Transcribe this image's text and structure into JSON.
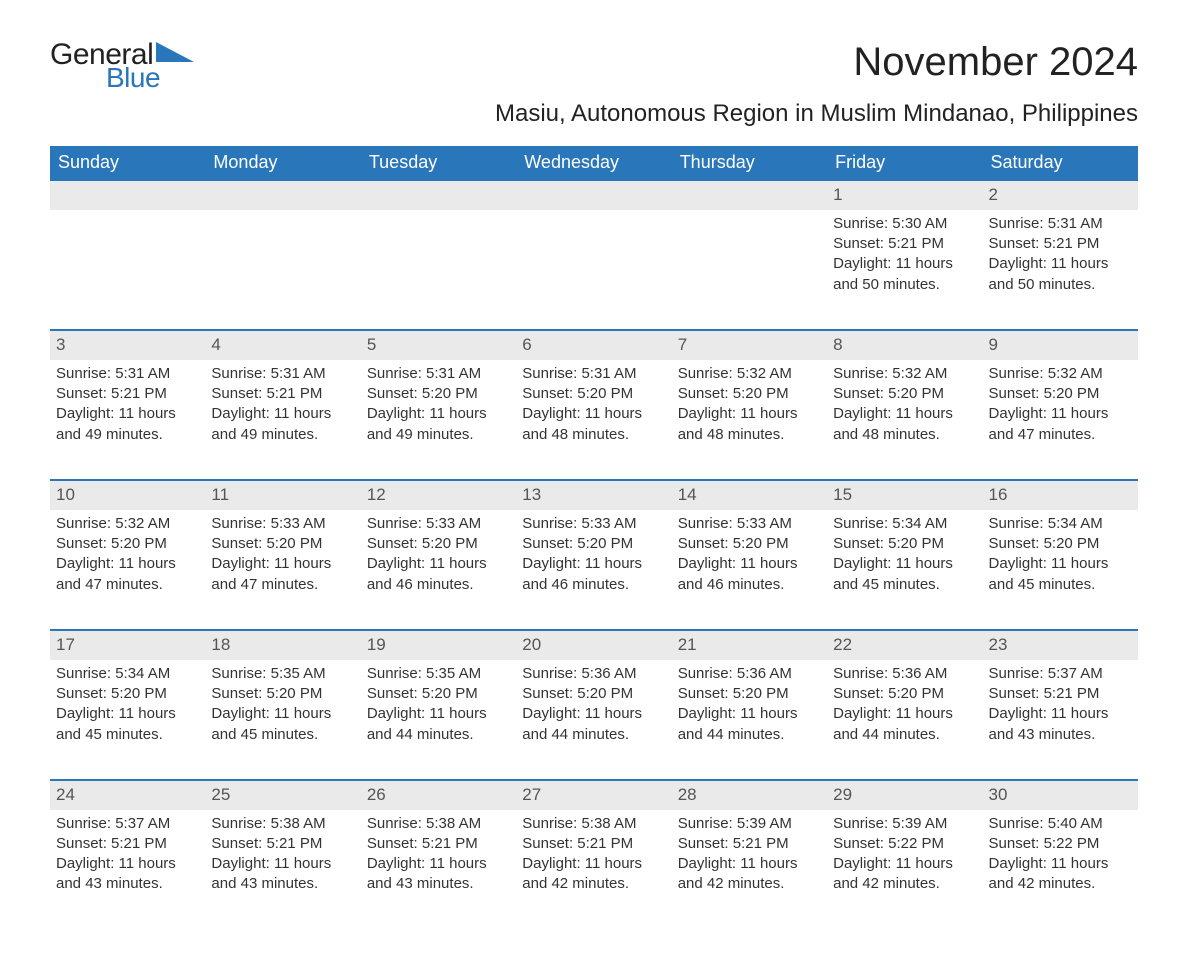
{
  "brand": {
    "line1": "General",
    "line2": "Blue",
    "triangle_color": "#2a76bb"
  },
  "title": "November 2024",
  "subtitle": "Masiu, Autonomous Region in Muslim Mindanao, Philippines",
  "colors": {
    "header_bg": "#2a76bb",
    "header_text": "#ffffff",
    "daynum_bg": "#eaeaea",
    "text": "#333333",
    "rule": "#2a76bb",
    "background": "#ffffff"
  },
  "typography": {
    "title_fontsize": 40,
    "subtitle_fontsize": 24,
    "dayheader_fontsize": 18,
    "body_fontsize": 15
  },
  "weekdays": [
    "Sunday",
    "Monday",
    "Tuesday",
    "Wednesday",
    "Thursday",
    "Friday",
    "Saturday"
  ],
  "weeks": [
    [
      {
        "blank": true
      },
      {
        "blank": true
      },
      {
        "blank": true
      },
      {
        "blank": true
      },
      {
        "blank": true
      },
      {
        "day": "1",
        "sunrise": "Sunrise: 5:30 AM",
        "sunset": "Sunset: 5:21 PM",
        "daylight": "Daylight: 11 hours and 50 minutes."
      },
      {
        "day": "2",
        "sunrise": "Sunrise: 5:31 AM",
        "sunset": "Sunset: 5:21 PM",
        "daylight": "Daylight: 11 hours and 50 minutes."
      }
    ],
    [
      {
        "day": "3",
        "sunrise": "Sunrise: 5:31 AM",
        "sunset": "Sunset: 5:21 PM",
        "daylight": "Daylight: 11 hours and 49 minutes."
      },
      {
        "day": "4",
        "sunrise": "Sunrise: 5:31 AM",
        "sunset": "Sunset: 5:21 PM",
        "daylight": "Daylight: 11 hours and 49 minutes."
      },
      {
        "day": "5",
        "sunrise": "Sunrise: 5:31 AM",
        "sunset": "Sunset: 5:20 PM",
        "daylight": "Daylight: 11 hours and 49 minutes."
      },
      {
        "day": "6",
        "sunrise": "Sunrise: 5:31 AM",
        "sunset": "Sunset: 5:20 PM",
        "daylight": "Daylight: 11 hours and 48 minutes."
      },
      {
        "day": "7",
        "sunrise": "Sunrise: 5:32 AM",
        "sunset": "Sunset: 5:20 PM",
        "daylight": "Daylight: 11 hours and 48 minutes."
      },
      {
        "day": "8",
        "sunrise": "Sunrise: 5:32 AM",
        "sunset": "Sunset: 5:20 PM",
        "daylight": "Daylight: 11 hours and 48 minutes."
      },
      {
        "day": "9",
        "sunrise": "Sunrise: 5:32 AM",
        "sunset": "Sunset: 5:20 PM",
        "daylight": "Daylight: 11 hours and 47 minutes."
      }
    ],
    [
      {
        "day": "10",
        "sunrise": "Sunrise: 5:32 AM",
        "sunset": "Sunset: 5:20 PM",
        "daylight": "Daylight: 11 hours and 47 minutes."
      },
      {
        "day": "11",
        "sunrise": "Sunrise: 5:33 AM",
        "sunset": "Sunset: 5:20 PM",
        "daylight": "Daylight: 11 hours and 47 minutes."
      },
      {
        "day": "12",
        "sunrise": "Sunrise: 5:33 AM",
        "sunset": "Sunset: 5:20 PM",
        "daylight": "Daylight: 11 hours and 46 minutes."
      },
      {
        "day": "13",
        "sunrise": "Sunrise: 5:33 AM",
        "sunset": "Sunset: 5:20 PM",
        "daylight": "Daylight: 11 hours and 46 minutes."
      },
      {
        "day": "14",
        "sunrise": "Sunrise: 5:33 AM",
        "sunset": "Sunset: 5:20 PM",
        "daylight": "Daylight: 11 hours and 46 minutes."
      },
      {
        "day": "15",
        "sunrise": "Sunrise: 5:34 AM",
        "sunset": "Sunset: 5:20 PM",
        "daylight": "Daylight: 11 hours and 45 minutes."
      },
      {
        "day": "16",
        "sunrise": "Sunrise: 5:34 AM",
        "sunset": "Sunset: 5:20 PM",
        "daylight": "Daylight: 11 hours and 45 minutes."
      }
    ],
    [
      {
        "day": "17",
        "sunrise": "Sunrise: 5:34 AM",
        "sunset": "Sunset: 5:20 PM",
        "daylight": "Daylight: 11 hours and 45 minutes."
      },
      {
        "day": "18",
        "sunrise": "Sunrise: 5:35 AM",
        "sunset": "Sunset: 5:20 PM",
        "daylight": "Daylight: 11 hours and 45 minutes."
      },
      {
        "day": "19",
        "sunrise": "Sunrise: 5:35 AM",
        "sunset": "Sunset: 5:20 PM",
        "daylight": "Daylight: 11 hours and 44 minutes."
      },
      {
        "day": "20",
        "sunrise": "Sunrise: 5:36 AM",
        "sunset": "Sunset: 5:20 PM",
        "daylight": "Daylight: 11 hours and 44 minutes."
      },
      {
        "day": "21",
        "sunrise": "Sunrise: 5:36 AM",
        "sunset": "Sunset: 5:20 PM",
        "daylight": "Daylight: 11 hours and 44 minutes."
      },
      {
        "day": "22",
        "sunrise": "Sunrise: 5:36 AM",
        "sunset": "Sunset: 5:20 PM",
        "daylight": "Daylight: 11 hours and 44 minutes."
      },
      {
        "day": "23",
        "sunrise": "Sunrise: 5:37 AM",
        "sunset": "Sunset: 5:21 PM",
        "daylight": "Daylight: 11 hours and 43 minutes."
      }
    ],
    [
      {
        "day": "24",
        "sunrise": "Sunrise: 5:37 AM",
        "sunset": "Sunset: 5:21 PM",
        "daylight": "Daylight: 11 hours and 43 minutes."
      },
      {
        "day": "25",
        "sunrise": "Sunrise: 5:38 AM",
        "sunset": "Sunset: 5:21 PM",
        "daylight": "Daylight: 11 hours and 43 minutes."
      },
      {
        "day": "26",
        "sunrise": "Sunrise: 5:38 AM",
        "sunset": "Sunset: 5:21 PM",
        "daylight": "Daylight: 11 hours and 43 minutes."
      },
      {
        "day": "27",
        "sunrise": "Sunrise: 5:38 AM",
        "sunset": "Sunset: 5:21 PM",
        "daylight": "Daylight: 11 hours and 42 minutes."
      },
      {
        "day": "28",
        "sunrise": "Sunrise: 5:39 AM",
        "sunset": "Sunset: 5:21 PM",
        "daylight": "Daylight: 11 hours and 42 minutes."
      },
      {
        "day": "29",
        "sunrise": "Sunrise: 5:39 AM",
        "sunset": "Sunset: 5:22 PM",
        "daylight": "Daylight: 11 hours and 42 minutes."
      },
      {
        "day": "30",
        "sunrise": "Sunrise: 5:40 AM",
        "sunset": "Sunset: 5:22 PM",
        "daylight": "Daylight: 11 hours and 42 minutes."
      }
    ]
  ]
}
